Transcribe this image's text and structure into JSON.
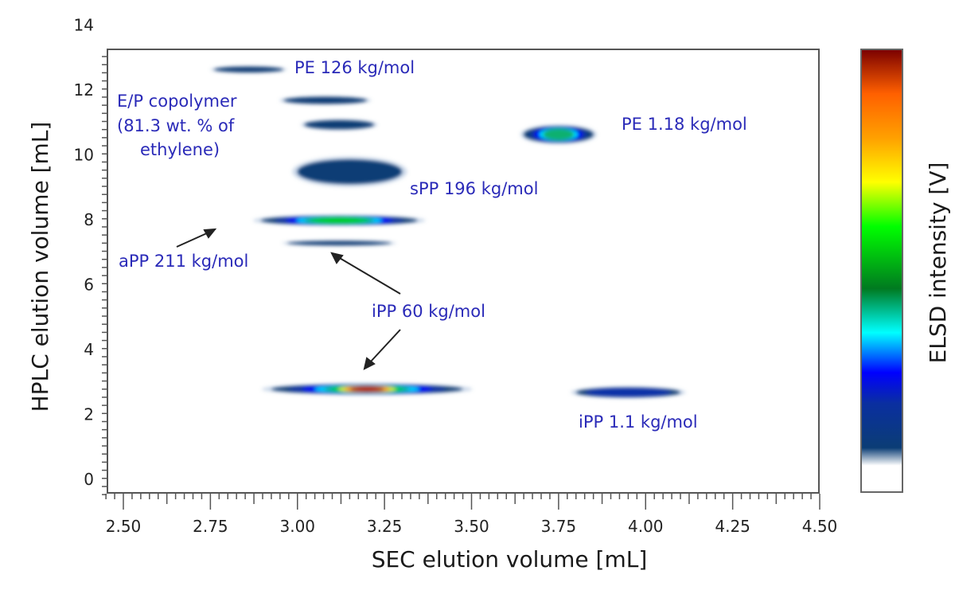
{
  "chart_data": {
    "type": "heatmap",
    "title": "",
    "xlabel": "SEC elution volume [mL]",
    "ylabel": "HPLC elution volume [mL]",
    "colorbar_label": "ELSD intensity [V]",
    "xlim": [
      2.45,
      4.5
    ],
    "ylim": [
      -0.2,
      13.5
    ],
    "x_ticks": [
      "2.50",
      "2.75",
      "3.00",
      "3.25",
      "3.50",
      "3.75",
      "4.00",
      "4.25",
      "4.50"
    ],
    "x_tick_values": [
      2.5,
      2.75,
      3.0,
      3.25,
      3.5,
      3.75,
      4.0,
      4.25,
      4.5
    ],
    "y_ticks": [
      "0",
      "2",
      "4",
      "6",
      "8",
      "10",
      "12",
      "14"
    ],
    "y_tick_values": [
      0,
      2,
      4,
      6,
      8,
      10,
      12,
      14
    ],
    "colormap": [
      "#ffffff",
      "#0a3d7a",
      "#0000ff",
      "#00ffff",
      "#008a20",
      "#00ff00",
      "#ffff00",
      "#ff8000",
      "#7a0000"
    ],
    "peaks": [
      {
        "name": "PE 126 kg/mol",
        "x_center": 2.86,
        "y_center": 12.9,
        "x_width": 0.2,
        "y_width": 0.18,
        "intensity": 0.08
      },
      {
        "name": "E/P copolymer band 1",
        "x_center": 3.08,
        "y_center": 11.95,
        "x_width": 0.24,
        "y_width": 0.22,
        "intensity": 0.14
      },
      {
        "name": "E/P copolymer band 2",
        "x_center": 3.12,
        "y_center": 11.2,
        "x_width": 0.2,
        "y_width": 0.28,
        "intensity": 0.14
      },
      {
        "name": "PE 1.18 kg/mol",
        "x_center": 3.75,
        "y_center": 10.9,
        "x_width": 0.2,
        "y_width": 0.5,
        "intensity": 0.5
      },
      {
        "name": "sPP 196 kg/mol",
        "x_center": 3.15,
        "y_center": 9.75,
        "x_width": 0.3,
        "y_width": 0.75,
        "intensity": 0.16
      },
      {
        "name": "aPP 211 kg/mol",
        "x_center": 3.12,
        "y_center": 8.25,
        "x_width": 0.45,
        "y_width": 0.28,
        "intensity": 0.55
      },
      {
        "name": "iPP 60 kg/mol (upper)",
        "x_center": 3.12,
        "y_center": 7.55,
        "x_width": 0.3,
        "y_width": 0.14,
        "intensity": 0.13
      },
      {
        "name": "iPP 60 kg/mol",
        "x_center": 3.2,
        "y_center": 3.05,
        "x_width": 0.55,
        "y_width": 0.3,
        "intensity": 1.0
      },
      {
        "name": "iPP 1.1 kg/mol",
        "x_center": 3.95,
        "y_center": 2.95,
        "x_width": 0.3,
        "y_width": 0.3,
        "intensity": 0.3
      }
    ],
    "annotations": [
      {
        "text": "PE 126 kg/mol"
      },
      {
        "text": "E/P copolymer"
      },
      {
        "text": "(81.3 wt. % of"
      },
      {
        "text": "ethylene)"
      },
      {
        "text": "PE 1.18 kg/mol"
      },
      {
        "text": "sPP 196 kg/mol"
      },
      {
        "text": "aPP 211 kg/mol"
      },
      {
        "text": "iPP 60 kg/mol"
      },
      {
        "text": "iPP 1.1 kg/mol"
      }
    ],
    "grid": false
  }
}
